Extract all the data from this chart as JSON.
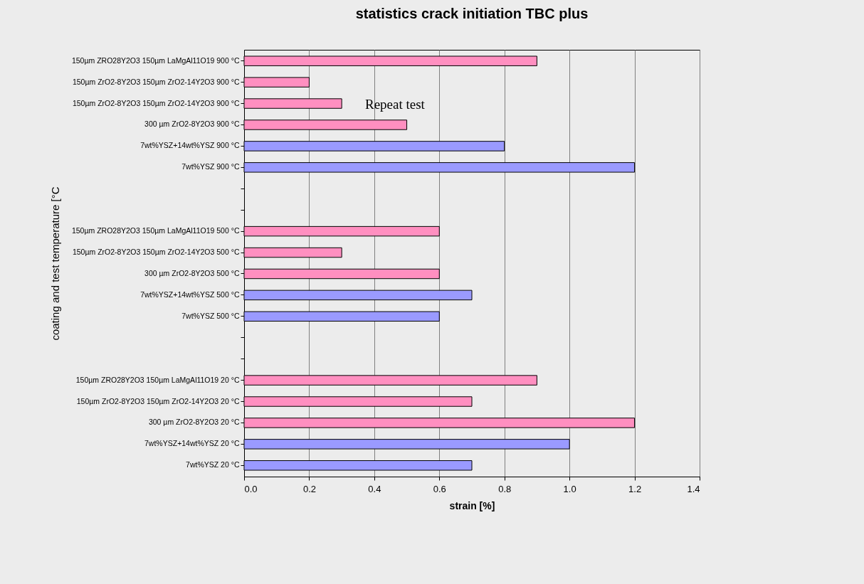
{
  "chart_data": {
    "type": "bar",
    "orientation": "horizontal",
    "title": "statistics crack initiation TBC plus",
    "xlabel": "strain [%]",
    "ylabel": "coating and test temperature [°C",
    "categories": [
      "150µm ZRO28Y2O3 150µm LaMgAl11O19  900 °C",
      "150µm ZrO2-8Y2O3 150µm ZrO2-14Y2O3  900 °C",
      "150µm ZrO2-8Y2O3 150µm ZrO2-14Y2O3  900 °C",
      "300 µm ZrO2-8Y2O3  900 °C",
      "7wt%YSZ+14wt%YSZ  900 °C",
      "7wt%YSZ  900 °C",
      null,
      null,
      "150µm ZRO28Y2O3 150µm LaMgAl11O19  500 °C",
      "150µm ZrO2-8Y2O3 150µm ZrO2-14Y2O3  500 °C",
      "300 µm ZrO2-8Y2O3  500 °C",
      "7wt%YSZ+14wt%YSZ  500 °C",
      "7wt%YSZ  500 °C",
      null,
      null,
      "150µm ZRO28Y2O3 150µm LaMgAl11O19  20 °C",
      "150µm ZrO2-8Y2O3 150µm ZrO2-14Y2O3  20 °C",
      "300 µm ZrO2-8Y2O3  20 °C",
      "7wt%YSZ+14wt%YSZ  20 °C",
      "7wt%YSZ  20 °C"
    ],
    "series": [
      {
        "color": "#ff8fc0",
        "values": [
          0.9,
          0.2,
          0.3,
          0.5,
          null,
          null,
          null,
          null,
          0.6,
          0.3,
          0.6,
          null,
          null,
          null,
          null,
          0.9,
          0.7,
          1.2,
          null,
          null
        ]
      },
      {
        "color": "#9a9aff",
        "values": [
          null,
          null,
          null,
          null,
          0.8,
          1.2,
          null,
          null,
          null,
          null,
          null,
          0.7,
          0.6,
          null,
          null,
          null,
          null,
          null,
          1.0,
          0.7
        ]
      }
    ],
    "xlim": [
      0,
      1.4
    ],
    "xticks": [
      {
        "value": 0,
        "label": "0.0"
      },
      {
        "value": 0.2,
        "label": "0.2"
      },
      {
        "value": 0.4,
        "label": "0.4"
      },
      {
        "value": 0.6,
        "label": "0.6"
      },
      {
        "value": 0.8,
        "label": "0.8"
      },
      {
        "value": 1.0,
        "label": "1.0"
      },
      {
        "value": 1.2,
        "label": "1.2"
      },
      {
        "value": 1.4,
        "label": "1.4"
      }
    ],
    "grid": "x",
    "annotations": [
      "Repeat test"
    ]
  }
}
